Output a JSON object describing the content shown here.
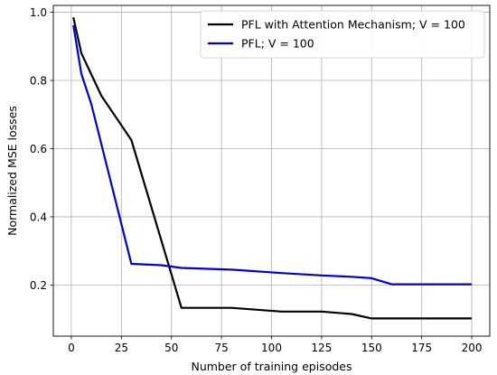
{
  "chart_data": {
    "type": "line",
    "xlabel": "Number of training episodes",
    "ylabel": "Normalized MSE losses",
    "xlim": [
      -9,
      209
    ],
    "ylim": [
      0.05,
      1.02
    ],
    "xticks": [
      0,
      25,
      50,
      75,
      100,
      125,
      150,
      175,
      200
    ],
    "yticks": [
      0.2,
      0.4,
      0.6,
      0.8,
      1.0
    ],
    "xtick_labels": [
      "0",
      "25",
      "50",
      "75",
      "100",
      "125",
      "150",
      "175",
      "200"
    ],
    "ytick_labels": [
      "0.2",
      "0.4",
      "0.6",
      "0.8",
      "1.0"
    ],
    "grid": true,
    "legend_position": "top-right",
    "series": [
      {
        "name": "PFL with Attention Mechanism; V = 100",
        "color": "#000000",
        "x": [
          1,
          5,
          15,
          30,
          55,
          80,
          105,
          125,
          140,
          150,
          160,
          200
        ],
        "y": [
          0.985,
          0.88,
          0.755,
          0.625,
          0.133,
          0.133,
          0.122,
          0.122,
          0.115,
          0.102,
          0.102,
          0.102
        ]
      },
      {
        "name": "PFL; V = 100",
        "color": "#0000dd",
        "x": [
          1,
          5,
          10,
          30,
          45,
          55,
          80,
          105,
          125,
          140,
          150,
          160,
          200
        ],
        "y": [
          0.962,
          0.82,
          0.73,
          0.262,
          0.258,
          0.25,
          0.245,
          0.235,
          0.228,
          0.224,
          0.22,
          0.202,
          0.202
        ]
      }
    ]
  }
}
